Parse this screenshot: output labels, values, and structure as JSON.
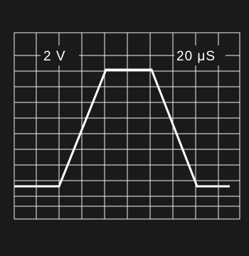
{
  "volts_per_div_label": "2 V",
  "time_per_div_label": "20 μS",
  "colors": {
    "background": "#1a1a1a",
    "grid": "#f2f2f2",
    "trace": "#ffffff"
  }
}
